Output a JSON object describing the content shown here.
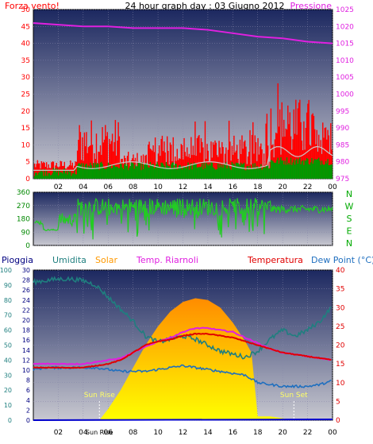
{
  "header": {
    "title": "24 hour graph day : 03 Giugno 2012",
    "left_label": "Forza vento!",
    "right_label": "Pressione"
  },
  "hour_ticks": [
    "02",
    "04",
    "06",
    "08",
    "10",
    "12",
    "14",
    "16",
    "18",
    "20",
    "22",
    "00"
  ],
  "colors": {
    "pressure": "#e020e0",
    "gust": "#ff0000",
    "wind": "#009900",
    "wind_avg": "#c8c8c8",
    "direction": "#22cc22",
    "temperature": "#e00000",
    "heat_index": "#e020e0",
    "humidity": "#1f7f7f",
    "dew_point": "#1f6fbf",
    "rain": "#0000cc",
    "solar_top": "#ff8c00",
    "solar_bottom": "#ffff00",
    "label_blue": "#000080"
  },
  "chart_data": [
    {
      "type": "line",
      "name_id": "wind-pressure",
      "left_axis": {
        "ylim": [
          0,
          50
        ],
        "ticks": [
          0,
          5,
          10,
          15,
          20,
          25,
          30,
          35,
          40,
          45,
          50
        ]
      },
      "right_axis": {
        "ylim": [
          975,
          1025
        ],
        "ticks": [
          975,
          980,
          985,
          990,
          995,
          1000,
          1005,
          1010,
          1015,
          1020,
          1025
        ]
      },
      "series": [
        {
          "key": "pressure",
          "axis": "right",
          "x": [
            0,
            2,
            4,
            6,
            8,
            10,
            12,
            14,
            16,
            18,
            20,
            22,
            24
          ],
          "values": [
            1021,
            1020.5,
            1020,
            1020,
            1019.5,
            1019.5,
            1019.5,
            1019,
            1018,
            1017,
            1016.5,
            1015.5,
            1015
          ]
        }
      ]
    },
    {
      "type": "line",
      "name_id": "wind-direction",
      "left_axis": {
        "ylim": [
          0,
          360
        ],
        "ticks": [
          0,
          90,
          180,
          270,
          360
        ]
      },
      "right_labels": [
        "N",
        "W",
        "S",
        "E",
        "N"
      ]
    },
    {
      "type": "line",
      "name_id": "temp-humidity-solar",
      "labels": {
        "rain": "Pioggia",
        "humidity": "Umidita",
        "solar": "Solar",
        "heat": "Temp. Riarnoli",
        "temperature": "Temperatura",
        "dew": "Dew Point (°C)"
      },
      "humidity_axis": {
        "ylim": [
          0,
          100
        ],
        "ticks": [
          0,
          10,
          20,
          30,
          40,
          50,
          60,
          70,
          80,
          90,
          100
        ]
      },
      "rain_axis": {
        "ylim": [
          0,
          30
        ],
        "ticks": [
          0,
          2,
          4,
          6,
          8,
          10,
          12,
          14,
          16,
          18,
          20,
          22,
          24,
          26,
          28,
          30
        ]
      },
      "temp_axis": {
        "ylim": [
          0,
          40
        ],
        "ticks": [
          0,
          5,
          10,
          15,
          20,
          25,
          30,
          35,
          40
        ]
      },
      "sun_rise_label": "Sun Rise",
      "sun_set_label": "Sun Set",
      "sun_rise_hour": 5.3,
      "sun_set_hour": 20.9,
      "series": [
        {
          "key": "humidity",
          "axis": "humidity",
          "x": [
            0,
            1,
            2,
            3,
            4,
            5,
            6,
            7,
            8,
            9,
            10,
            11,
            12,
            13,
            14,
            15,
            16,
            17,
            18,
            19,
            20,
            21,
            22,
            23,
            24
          ],
          "values": [
            92,
            93,
            94,
            94,
            93,
            90,
            82,
            74,
            66,
            56,
            52,
            54,
            56,
            54,
            50,
            46,
            44,
            42,
            46,
            54,
            60,
            56,
            60,
            66,
            76
          ]
        },
        {
          "key": "temperature",
          "axis": "temp",
          "x": [
            0,
            1,
            2,
            3,
            4,
            5,
            6,
            7,
            8,
            9,
            10,
            11,
            12,
            13,
            14,
            15,
            16,
            17,
            18,
            19,
            20,
            21,
            22,
            23,
            24
          ],
          "values": [
            14,
            14,
            14,
            14,
            14,
            14.5,
            15,
            16,
            18,
            20,
            21,
            21.5,
            22.5,
            23,
            23,
            22.5,
            22,
            21,
            20,
            19,
            18,
            17.5,
            17,
            16.5,
            16
          ]
        },
        {
          "key": "heat_index",
          "axis": "temp",
          "x": [
            0,
            1,
            2,
            3,
            4,
            5,
            6,
            7,
            8,
            9,
            10,
            11,
            12,
            13,
            14,
            15,
            16,
            17,
            18,
            19,
            20,
            21,
            22,
            23,
            24
          ],
          "values": [
            15,
            15,
            15,
            15,
            15,
            15.5,
            16,
            16.5,
            18,
            19.5,
            21,
            22,
            23.5,
            24.5,
            24.5,
            24,
            23.5,
            22,
            20.5,
            19,
            18,
            17.5,
            17,
            16.5,
            16
          ]
        },
        {
          "key": "dew_point",
          "axis": "temp",
          "x": [
            0,
            1,
            2,
            3,
            4,
            5,
            6,
            7,
            8,
            9,
            10,
            11,
            12,
            13,
            14,
            15,
            16,
            17,
            18,
            19,
            20,
            21,
            22,
            23,
            24
          ],
          "values": [
            13.5,
            14,
            14,
            14,
            14,
            14,
            13.5,
            13,
            13,
            13,
            13.5,
            14,
            14.5,
            14,
            13.5,
            13,
            12.5,
            12,
            10,
            9.5,
            9,
            9,
            9,
            9.5,
            10.5
          ]
        },
        {
          "key": "solar",
          "axis": "temp",
          "x": [
            5.3,
            6,
            7,
            8,
            9,
            10,
            11,
            12,
            13,
            14,
            15,
            16,
            17,
            17.5,
            18,
            19,
            20,
            20.9
          ],
          "values": [
            0,
            3,
            8,
            14,
            20,
            25,
            29,
            31.5,
            32.5,
            32,
            30,
            26,
            21,
            18,
            1,
            1,
            0.5,
            0
          ]
        },
        {
          "key": "rain",
          "axis": "rain",
          "x": [
            0,
            24
          ],
          "values": [
            0,
            0
          ]
        }
      ]
    }
  ]
}
